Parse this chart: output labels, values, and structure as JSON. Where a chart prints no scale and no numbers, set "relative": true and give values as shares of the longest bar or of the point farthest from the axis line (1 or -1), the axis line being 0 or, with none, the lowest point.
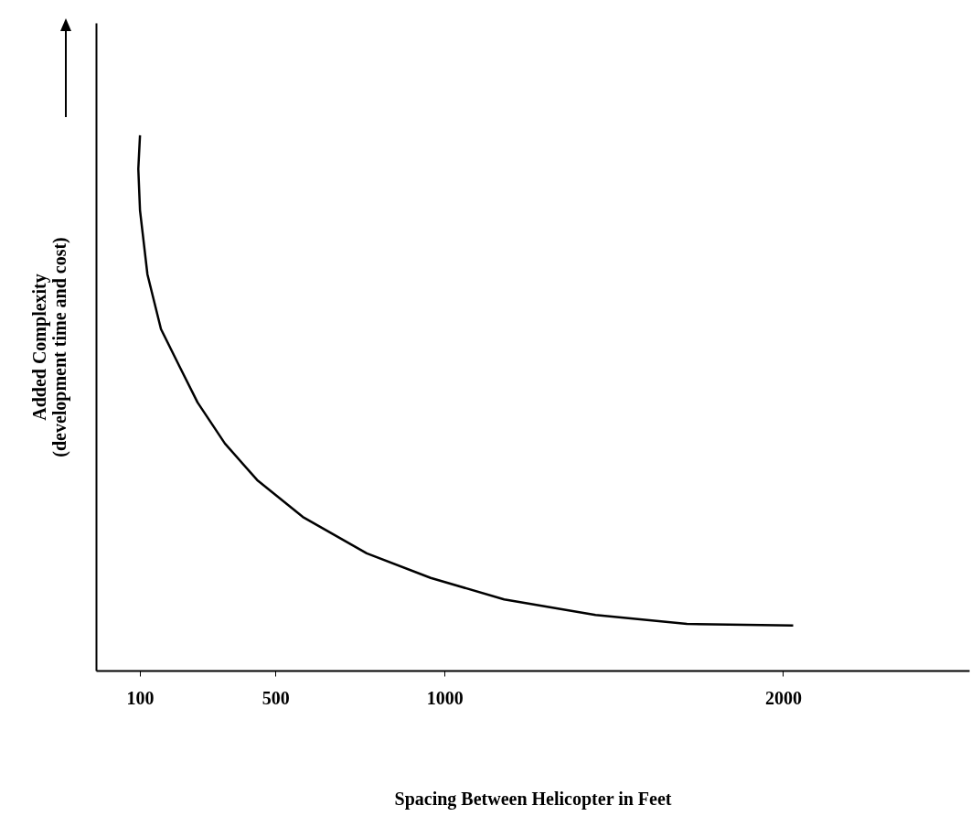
{
  "chart_data": {
    "type": "line",
    "relative": true,
    "xlabel": "Spacing Between Helicopter in Feet",
    "ylabel": "Added Complexity\n(development time and cost)",
    "xlim": [
      -30,
      2550
    ],
    "xticks": [
      100,
      500,
      1000,
      2000
    ],
    "grid": false,
    "marker": "none",
    "line_style": "solid",
    "series": [
      {
        "color": "#000000",
        "x": [
          100,
          95,
          100,
          122,
          162,
          216,
          270,
          351,
          446,
          581,
          770,
          959,
          1176,
          1446,
          1716,
          2030
        ],
        "values": [
          1,
          0.937,
          0.86,
          0.74,
          0.638,
          0.569,
          0.501,
          0.424,
          0.356,
          0.287,
          0.219,
          0.173,
          0.133,
          0.104,
          0.087,
          0.084
        ]
      }
    ]
  }
}
